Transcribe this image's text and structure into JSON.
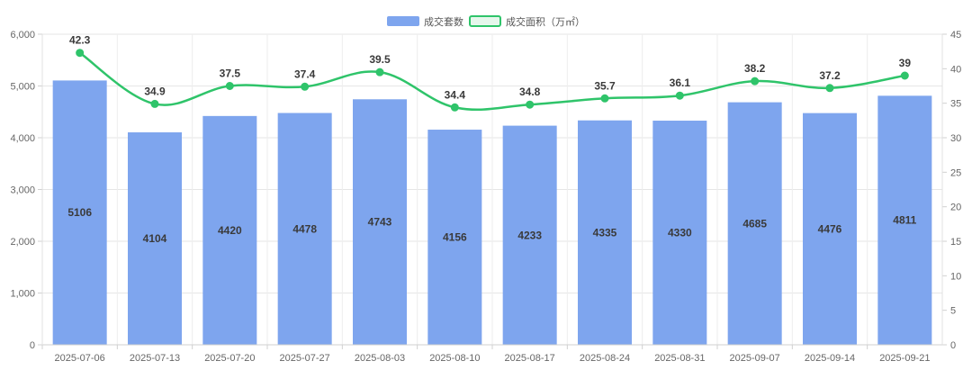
{
  "chart_data": {
    "type": "bar",
    "categories": [
      "2025-07-06",
      "2025-07-13",
      "2025-07-20",
      "2025-07-27",
      "2025-08-03",
      "2025-08-10",
      "2025-08-17",
      "2025-08-24",
      "2025-08-31",
      "2025-09-07",
      "2025-09-14",
      "2025-09-21"
    ],
    "series": [
      {
        "name": "成交套数",
        "type": "bar",
        "axis": "left",
        "color": "#7ea5ee",
        "values": [
          5106,
          4104,
          4420,
          4478,
          4743,
          4156,
          4233,
          4335,
          4330,
          4685,
          4476,
          4811
        ]
      },
      {
        "name": "成交面积（万㎡）",
        "type": "line",
        "axis": "right",
        "color": "#2fc46a",
        "values": [
          42.3,
          34.9,
          37.5,
          37.4,
          39.5,
          34.4,
          34.8,
          35.7,
          36.1,
          38.2,
          37.2,
          39.0
        ]
      }
    ],
    "y_left": {
      "ylim": [
        0,
        6000
      ],
      "ticks": [
        "0",
        "1,000",
        "2,000",
        "3,000",
        "4,000",
        "5,000",
        "6,000"
      ]
    },
    "y_right": {
      "ylim": [
        0,
        45
      ],
      "ticks": [
        "0",
        "5",
        "10",
        "15",
        "20",
        "25",
        "30",
        "35",
        "40",
        "45"
      ]
    },
    "grid": true,
    "legend_position": "top-center",
    "title": "",
    "xlabel": "",
    "ylabel": ""
  }
}
